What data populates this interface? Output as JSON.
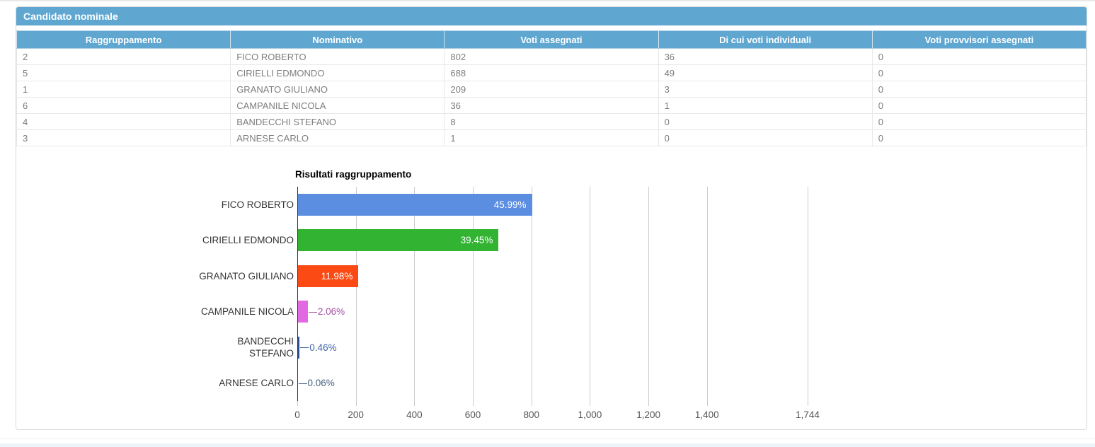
{
  "panel": {
    "title": "Candidato nominale"
  },
  "table": {
    "columns": [
      "Raggruppamento",
      "Nominativo",
      "Voti assegnati",
      "Di cui voti individuali",
      "Voti provvisori assegnati"
    ],
    "rows": [
      [
        "2",
        "FICO ROBERTO",
        "802",
        "36",
        "0"
      ],
      [
        "5",
        "CIRIELLI EDMONDO",
        "688",
        "49",
        "0"
      ],
      [
        "1",
        "GRANATO GIULIANO",
        "209",
        "3",
        "0"
      ],
      [
        "6",
        "CAMPANILE NICOLA",
        "36",
        "1",
        "0"
      ],
      [
        "4",
        "BANDECCHI STEFANO",
        "8",
        "0",
        "0"
      ],
      [
        "3",
        "ARNESE CARLO",
        "1",
        "0",
        "0"
      ]
    ]
  },
  "chart_data": {
    "type": "bar",
    "orientation": "horizontal",
    "title": "Risultati raggruppamento",
    "categories": [
      "FICO ROBERTO",
      "CIRIELLI EDMONDO",
      "GRANATO GIULIANO",
      "CAMPANILE NICOLA",
      "BANDECCHI STEFANO",
      "ARNESE CARLO"
    ],
    "category_lines": [
      [
        "FICO ROBERTO"
      ],
      [
        "CIRIELLI EDMONDO"
      ],
      [
        "GRANATO GIULIANO"
      ],
      [
        "CAMPANILE NICOLA"
      ],
      [
        "BANDECCHI",
        "STEFANO"
      ],
      [
        "ARNESE CARLO"
      ]
    ],
    "values": [
      802,
      688,
      209,
      36,
      8,
      1
    ],
    "percent_labels": [
      "45.99%",
      "39.45%",
      "11.98%",
      "2.06%",
      "0.46%",
      "0.06%"
    ],
    "bar_colors": [
      "#5b8de1",
      "#32b432",
      "#fb4a13",
      "#e169e1",
      "#2b4d90",
      "#48627f"
    ],
    "label_inside": [
      true,
      true,
      true,
      false,
      false,
      false
    ],
    "outside_label_colors": [
      "#ffffff",
      "#ffffff",
      "#ffffff",
      "#a450a4",
      "#3e63a8",
      "#48627f"
    ],
    "x_ticks": [
      {
        "value": 0,
        "label": "0"
      },
      {
        "value": 200,
        "label": "200"
      },
      {
        "value": 400,
        "label": "400"
      },
      {
        "value": 600,
        "label": "600"
      },
      {
        "value": 800,
        "label": "800"
      },
      {
        "value": 1000,
        "label": "1,000"
      },
      {
        "value": 1200,
        "label": "1,200"
      },
      {
        "value": 1400,
        "label": "1,400"
      },
      {
        "value": 1744,
        "label": "1,744"
      }
    ],
    "xlim": [
      0,
      1744
    ],
    "grid": true,
    "legend": "none"
  },
  "colors": {
    "panel_header_bg": "#5fa7d0",
    "header_text": "#ffffff",
    "gridline": "#cccccc",
    "axis_line": "#333333"
  }
}
